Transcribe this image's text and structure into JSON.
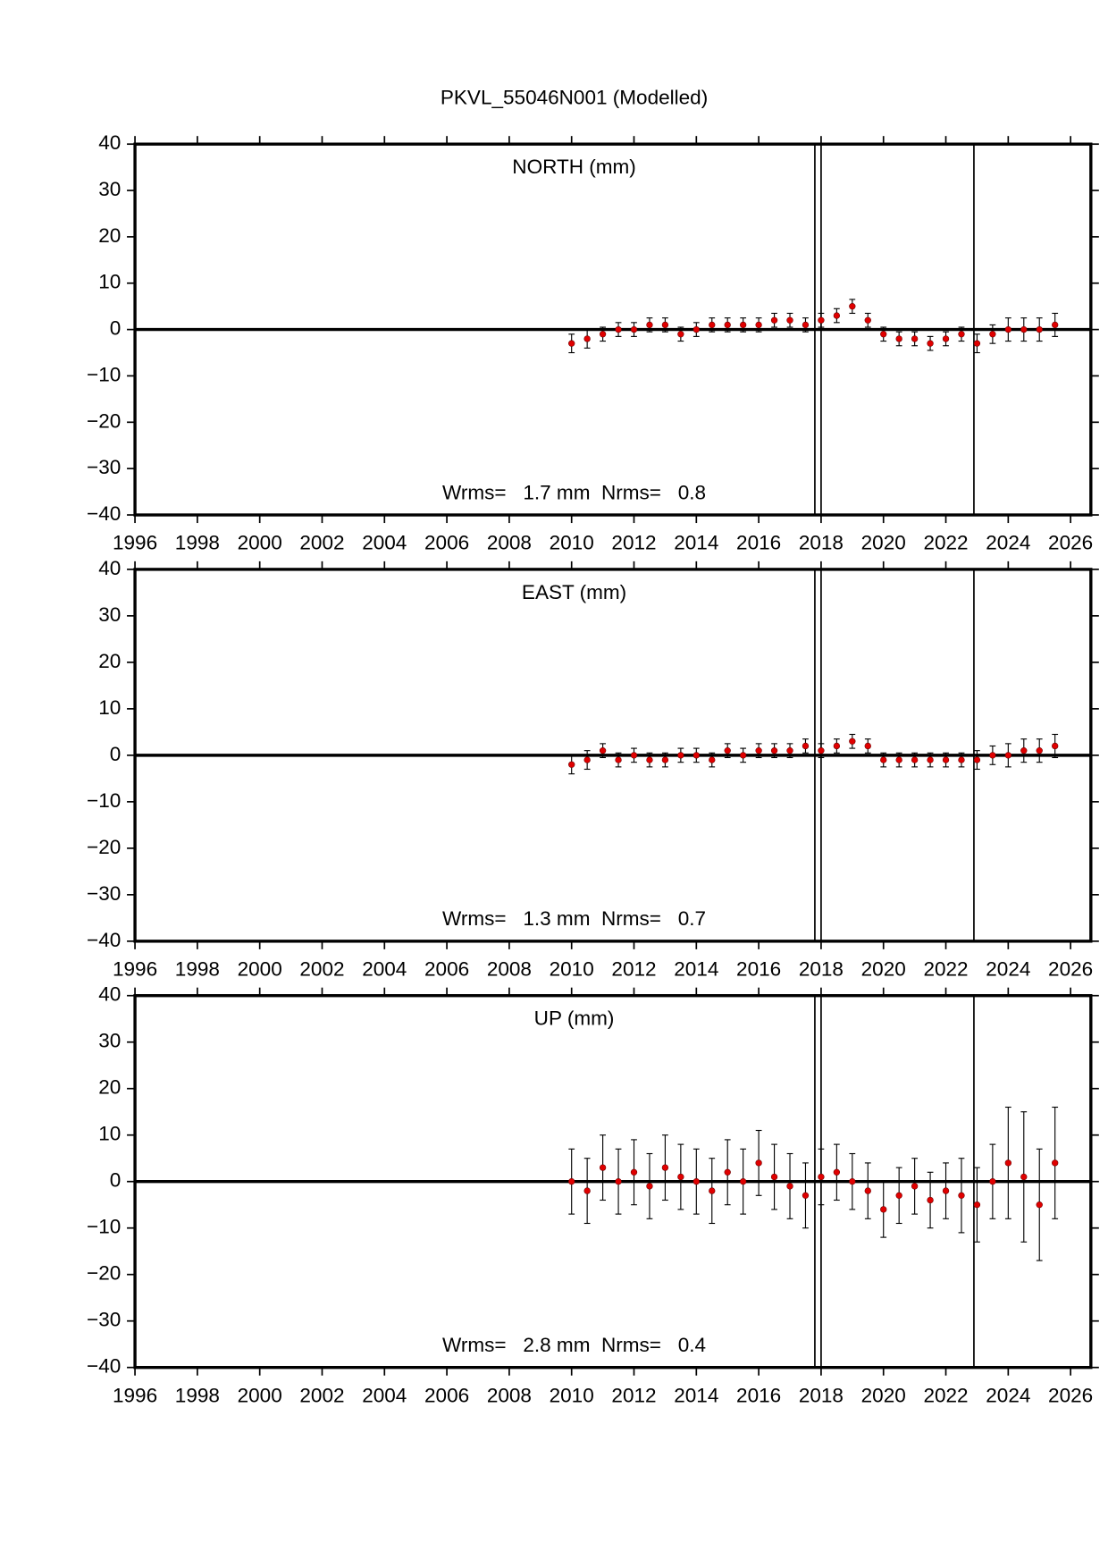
{
  "title": "PKVL_55046N001 (Modelled)",
  "chart_data": [
    {
      "type": "errorbar",
      "label": "NORTH (mm)",
      "annotation": "Wrms=   1.7 mm  Nrms=   0.8",
      "color": "#e00000",
      "x": [
        2010,
        2010.5,
        2011,
        2011.5,
        2012,
        2012.5,
        2013,
        2013.5,
        2014,
        2014.5,
        2015,
        2015.5,
        2016,
        2016.5,
        2017,
        2017.5,
        2018,
        2018.5,
        2019,
        2019.5,
        2020,
        2020.5,
        2021,
        2021.5,
        2022,
        2022.5,
        2023,
        2023.5,
        2024,
        2024.5,
        2025,
        2025.5
      ],
      "values": [
        -3,
        -2,
        -1,
        0,
        0,
        1,
        1,
        -1,
        0,
        1,
        1,
        1,
        1,
        2,
        2,
        1,
        2,
        3,
        5,
        2,
        -1,
        -2,
        -2,
        -3,
        -2,
        -1,
        -3,
        -1,
        0,
        0,
        0,
        1
      ],
      "errors": [
        2,
        2,
        1.5,
        1.5,
        1.5,
        1.5,
        1.5,
        1.5,
        1.5,
        1.5,
        1.5,
        1.5,
        1.5,
        1.5,
        1.5,
        1.5,
        1.5,
        1.5,
        1.5,
        1.5,
        1.5,
        1.5,
        1.5,
        1.5,
        1.5,
        1.5,
        2,
        2,
        2.5,
        2.5,
        2.5,
        2.5
      ],
      "xlim": [
        1996,
        2026.65
      ],
      "xticks": [
        1996,
        1998,
        2000,
        2002,
        2004,
        2006,
        2008,
        2010,
        2012,
        2014,
        2016,
        2018,
        2020,
        2022,
        2024,
        2026
      ],
      "ylim": [
        -40,
        40
      ],
      "yticks": [
        {
          "value": -40,
          "label": "−40"
        },
        {
          "value": -30,
          "label": "−30"
        },
        {
          "value": -20,
          "label": "−20"
        },
        {
          "value": -10,
          "label": "−10"
        },
        0,
        10,
        20,
        30,
        40
      ],
      "hline": 0,
      "vlines": [
        2017.8,
        2018.0,
        2022.9
      ]
    },
    {
      "type": "errorbar",
      "label": "EAST (mm)",
      "annotation": "Wrms=   1.3 mm  Nrms=   0.7",
      "color": "#e00000",
      "x": [
        2010,
        2010.5,
        2011,
        2011.5,
        2012,
        2012.5,
        2013,
        2013.5,
        2014,
        2014.5,
        2015,
        2015.5,
        2016,
        2016.5,
        2017,
        2017.5,
        2018,
        2018.5,
        2019,
        2019.5,
        2020,
        2020.5,
        2021,
        2021.5,
        2022,
        2022.5,
        2023,
        2023.5,
        2024,
        2024.5,
        2025,
        2025.5
      ],
      "values": [
        -2,
        -1,
        1,
        -1,
        0,
        -1,
        -1,
        0,
        0,
        -1,
        1,
        0,
        1,
        1,
        1,
        2,
        1,
        2,
        3,
        2,
        -1,
        -1,
        -1,
        -1,
        -1,
        -1,
        -1,
        0,
        0,
        1,
        1,
        2
      ],
      "errors": [
        2,
        2,
        1.5,
        1.5,
        1.5,
        1.5,
        1.5,
        1.5,
        1.5,
        1.5,
        1.5,
        1.5,
        1.5,
        1.5,
        1.5,
        1.5,
        1.5,
        1.5,
        1.5,
        1.5,
        1.5,
        1.5,
        1.5,
        1.5,
        1.5,
        1.5,
        2,
        2,
        2.5,
        2.5,
        2.5,
        2.5
      ],
      "xlim": [
        1996,
        2026.65
      ],
      "xticks": [
        1996,
        1998,
        2000,
        2002,
        2004,
        2006,
        2008,
        2010,
        2012,
        2014,
        2016,
        2018,
        2020,
        2022,
        2024,
        2026
      ],
      "ylim": [
        -40,
        40
      ],
      "yticks": [
        {
          "value": -40,
          "label": "−40"
        },
        {
          "value": -30,
          "label": "−30"
        },
        {
          "value": -20,
          "label": "−20"
        },
        {
          "value": -10,
          "label": "−10"
        },
        0,
        10,
        20,
        30,
        40
      ],
      "hline": 0,
      "vlines": [
        2017.8,
        2018.0,
        2022.9
      ]
    },
    {
      "type": "errorbar",
      "label": "UP (mm)",
      "annotation": "Wrms=   2.8 mm  Nrms=   0.4",
      "color": "#e00000",
      "x": [
        2010,
        2010.5,
        2011,
        2011.5,
        2012,
        2012.5,
        2013,
        2013.5,
        2014,
        2014.5,
        2015,
        2015.5,
        2016,
        2016.5,
        2017,
        2017.5,
        2018,
        2018.5,
        2019,
        2019.5,
        2020,
        2020.5,
        2021,
        2021.5,
        2022,
        2022.5,
        2023,
        2023.5,
        2024,
        2024.5,
        2025,
        2025.5
      ],
      "values": [
        0,
        -2,
        3,
        0,
        2,
        -1,
        3,
        1,
        0,
        -2,
        2,
        0,
        4,
        1,
        -1,
        -3,
        1,
        2,
        0,
        -2,
        -6,
        -3,
        -1,
        -4,
        -2,
        -3,
        -5,
        0,
        4,
        1,
        -5,
        4
      ],
      "errors": [
        7,
        7,
        7,
        7,
        7,
        7,
        7,
        7,
        7,
        7,
        7,
        7,
        7,
        7,
        7,
        7,
        6,
        6,
        6,
        6,
        6,
        6,
        6,
        6,
        6,
        8,
        8,
        8,
        12,
        14,
        12,
        12
      ],
      "xlim": [
        1996,
        2026.65
      ],
      "xticks": [
        1996,
        1998,
        2000,
        2002,
        2004,
        2006,
        2008,
        2010,
        2012,
        2014,
        2016,
        2018,
        2020,
        2022,
        2024,
        2026
      ],
      "ylim": [
        -40,
        40
      ],
      "yticks": [
        {
          "value": -40,
          "label": "−40"
        },
        {
          "value": -30,
          "label": "−30"
        },
        {
          "value": -20,
          "label": "−20"
        },
        {
          "value": -10,
          "label": "−10"
        },
        0,
        10,
        20,
        30,
        40
      ],
      "hline": 0,
      "vlines": [
        2017.8,
        2018.0,
        2022.9
      ]
    }
  ]
}
